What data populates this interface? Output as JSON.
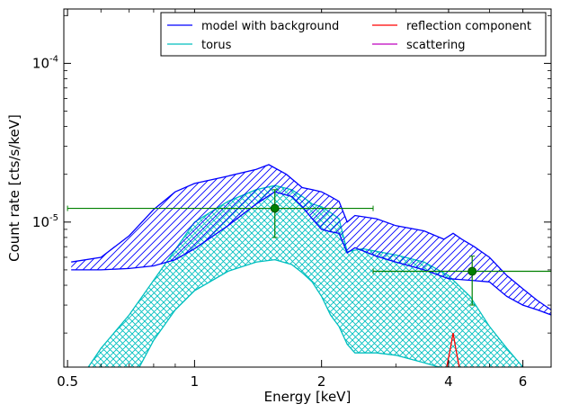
{
  "chart_data": {
    "type": "line",
    "xlabel": "Energy [keV]",
    "ylabel": "Count rate [cts/s/keV]",
    "x_scale": "log",
    "y_scale": "log",
    "xlim": [
      0.49,
      7.0
    ],
    "ylim": [
      1.22e-06,
      0.00022
    ],
    "x_ticks": [
      {
        "value": 0.5,
        "label": "0.5"
      },
      {
        "value": 1,
        "label": "1"
      },
      {
        "value": 2,
        "label": "2"
      },
      {
        "value": 4,
        "label": "4"
      },
      {
        "value": 6,
        "label": "6"
      }
    ],
    "y_ticks": [
      {
        "value": 1e-05,
        "base": "10",
        "exp": "-5"
      },
      {
        "value": 0.0001,
        "base": "10",
        "exp": "-4"
      }
    ],
    "grid": false,
    "legend_position": "top-right",
    "legend_columns": 2,
    "legend": [
      {
        "label": "model with background",
        "color": "#0000ff"
      },
      {
        "label": "torus",
        "color": "#00bfbf"
      },
      {
        "label": "reflection component",
        "color": "#ff0000"
      },
      {
        "label": "scattering",
        "color": "#bf00bf"
      }
    ],
    "series": [
      {
        "name": "model with background",
        "color": "#0000ff",
        "hatch": "diagonal",
        "upper": [
          [
            0.51,
            5.6e-06
          ],
          [
            0.6,
            6e-06
          ],
          [
            0.7,
            8.2e-06
          ],
          [
            0.8,
            1.2e-05
          ],
          [
            0.9,
            1.55e-05
          ],
          [
            1.0,
            1.75e-05
          ],
          [
            1.2,
            1.95e-05
          ],
          [
            1.4,
            2.15e-05
          ],
          [
            1.5,
            2.3e-05
          ],
          [
            1.65,
            2e-05
          ],
          [
            1.8,
            1.65e-05
          ],
          [
            1.9,
            1.6e-05
          ],
          [
            2.0,
            1.55e-05
          ],
          [
            2.1,
            1.45e-05
          ],
          [
            2.2,
            1.35e-05
          ],
          [
            2.3,
            1e-05
          ],
          [
            2.4,
            1.1e-05
          ],
          [
            2.7,
            1.05e-05
          ],
          [
            3.0,
            9.5e-06
          ],
          [
            3.5,
            8.8e-06
          ],
          [
            3.9,
            7.8e-06
          ],
          [
            4.1,
            8.5e-06
          ],
          [
            4.3,
            7.8e-06
          ],
          [
            4.6,
            7e-06
          ],
          [
            5.0,
            6e-06
          ],
          [
            5.5,
            4.6e-06
          ],
          [
            6.0,
            3.8e-06
          ],
          [
            6.5,
            3.2e-06
          ],
          [
            7.0,
            2.8e-06
          ]
        ],
        "lower": [
          [
            0.51,
            5e-06
          ],
          [
            0.6,
            5e-06
          ],
          [
            0.7,
            5.1e-06
          ],
          [
            0.8,
            5.3e-06
          ],
          [
            0.9,
            5.8e-06
          ],
          [
            1.0,
            6.8e-06
          ],
          [
            1.2,
            9.5e-06
          ],
          [
            1.4,
            1.3e-05
          ],
          [
            1.55,
            1.55e-05
          ],
          [
            1.7,
            1.45e-05
          ],
          [
            1.8,
            1.25e-05
          ],
          [
            1.9,
            1.05e-05
          ],
          [
            2.0,
            9e-06
          ],
          [
            2.1,
            8.7e-06
          ],
          [
            2.2,
            8.5e-06
          ],
          [
            2.3,
            6.4e-06
          ],
          [
            2.4,
            6.9e-06
          ],
          [
            2.7,
            6.1e-06
          ],
          [
            3.0,
            5.6e-06
          ],
          [
            3.5,
            5e-06
          ],
          [
            4.0,
            4.4e-06
          ],
          [
            4.5,
            4.3e-06
          ],
          [
            5.0,
            4.2e-06
          ],
          [
            5.5,
            3.4e-06
          ],
          [
            6.0,
            3e-06
          ],
          [
            6.5,
            2.8e-06
          ],
          [
            7.0,
            2.6e-06
          ]
        ]
      },
      {
        "name": "torus",
        "color": "#00bfbf",
        "hatch": "crosshatch",
        "upper": [
          [
            0.56,
            1.22e-06
          ],
          [
            0.6,
            1.6e-06
          ],
          [
            0.7,
            2.6e-06
          ],
          [
            0.8,
            4.3e-06
          ],
          [
            0.9,
            6.7e-06
          ],
          [
            1.0,
            1e-05
          ],
          [
            1.2,
            1.35e-05
          ],
          [
            1.4,
            1.6e-05
          ],
          [
            1.55,
            1.7e-05
          ],
          [
            1.7,
            1.6e-05
          ],
          [
            1.8,
            1.45e-05
          ],
          [
            1.9,
            1.3e-05
          ],
          [
            2.0,
            1.25e-05
          ],
          [
            2.1,
            1.15e-05
          ],
          [
            2.2,
            1.05e-05
          ],
          [
            2.3,
            6.5e-06
          ],
          [
            2.5,
            6.8e-06
          ],
          [
            3.0,
            6.2e-06
          ],
          [
            3.5,
            5.6e-06
          ],
          [
            4.0,
            4.6e-06
          ],
          [
            4.5,
            3.4e-06
          ],
          [
            5.0,
            2.2e-06
          ],
          [
            5.5,
            1.6e-06
          ],
          [
            6.0,
            1.22e-06
          ]
        ],
        "lower": [
          [
            0.74,
            1.22e-06
          ],
          [
            0.8,
            1.8e-06
          ],
          [
            0.9,
            2.8e-06
          ],
          [
            1.0,
            3.7e-06
          ],
          [
            1.2,
            4.9e-06
          ],
          [
            1.4,
            5.6e-06
          ],
          [
            1.55,
            5.8e-06
          ],
          [
            1.7,
            5.4e-06
          ],
          [
            1.8,
            4.8e-06
          ],
          [
            1.9,
            4.2e-06
          ],
          [
            2.0,
            3.4e-06
          ],
          [
            2.1,
            2.6e-06
          ],
          [
            2.2,
            2.2e-06
          ],
          [
            2.3,
            1.7e-06
          ],
          [
            2.4,
            1.5e-06
          ],
          [
            2.7,
            1.5e-06
          ],
          [
            3.0,
            1.45e-06
          ],
          [
            3.5,
            1.3e-06
          ],
          [
            3.8,
            1.22e-06
          ]
        ]
      },
      {
        "name": "reflection component",
        "color": "#ff0000",
        "hatch": "none",
        "upper": [
          [
            3.96,
            1.22e-06
          ],
          [
            4.04,
            1.6e-06
          ],
          [
            4.1,
            2e-06
          ],
          [
            4.16,
            1.6e-06
          ],
          [
            4.24,
            1.22e-06
          ]
        ],
        "lower": [
          [
            4.1,
            1.22e-06
          ]
        ]
      }
    ],
    "data_points": [
      {
        "x": 1.55,
        "y": 1.22e-05,
        "xerr": [
          0.5,
          2.65
        ],
        "yerr": [
          8e-06,
          1.6e-05
        ]
      },
      {
        "x": 4.55,
        "y": 4.9e-06,
        "xerr": [
          2.65,
          7.0
        ],
        "yerr": [
          3e-06,
          6.1e-06
        ]
      }
    ]
  },
  "colors": {
    "model": "#0000ff",
    "torus": "#00bfbf",
    "reflection": "#ff0000",
    "scattering": "#bf00bf",
    "data": "#008000"
  }
}
